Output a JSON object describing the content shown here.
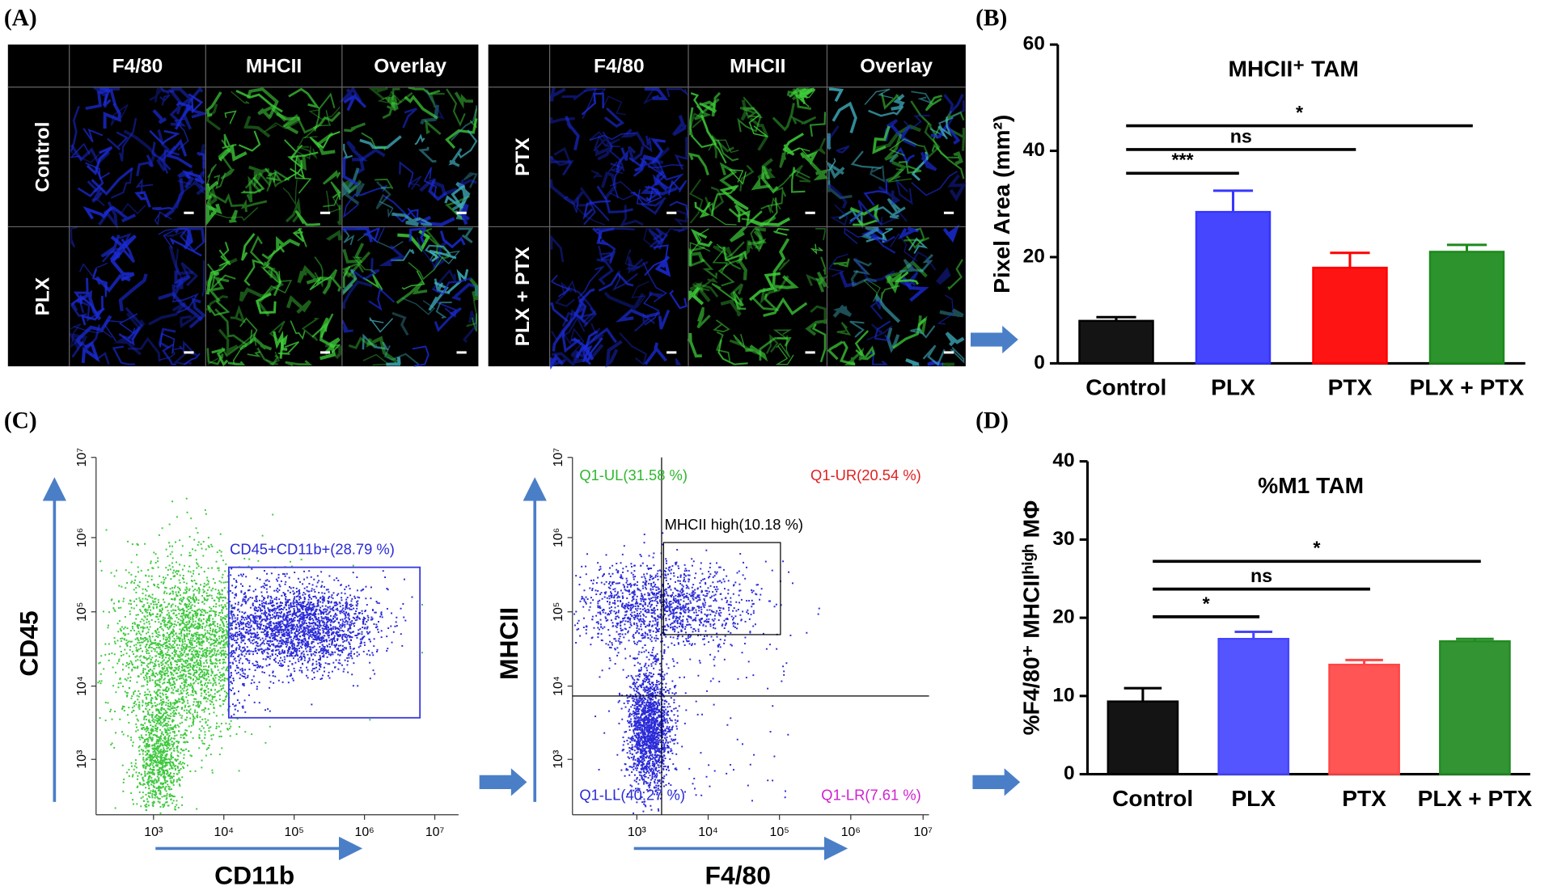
{
  "panel_labels": [
    "(A)",
    "(B)",
    "(C)",
    "(D)"
  ],
  "panel_a": {
    "left": {
      "columns": [
        "F4/80",
        "MHCII",
        "Overlay"
      ],
      "rows": [
        "Control",
        "PLX"
      ]
    },
    "right": {
      "columns": [
        "F4/80",
        "MHCII",
        "Overlay"
      ],
      "rows": [
        "PTX",
        "PLX + PTX"
      ]
    }
  },
  "chart_data": [
    {
      "type": "bar",
      "title": "MHCII⁺ TAM",
      "y_label": "Pixel Area (mm²)",
      "categories": [
        "Control",
        "PLX",
        "PTX",
        "PLX + PTX"
      ],
      "values": [
        8,
        28.5,
        18,
        21
      ],
      "errors": [
        0.7,
        4,
        2.8,
        1.3
      ],
      "colors": [
        "#000000",
        "#3636ff",
        "#ff0000",
        "#1b8a1b"
      ],
      "ylim": [
        0,
        60
      ],
      "yticks": [
        0,
        20,
        40,
        60
      ],
      "annotations": [
        {
          "text": "***",
          "from": "Control",
          "to": "PLX"
        },
        {
          "text": "ns",
          "from": "Control",
          "to": "PTX"
        },
        {
          "text": "*",
          "from": "Control",
          "to": "PLX + PTX"
        }
      ]
    },
    {
      "type": "bar",
      "title": "%M1 TAM",
      "y_label": "%F4/80⁺ MHCIIʰⁱᵍʰ MΦ",
      "categories": [
        "Control",
        "PLX",
        "PTX",
        "PLX + PTX"
      ],
      "values": [
        9.3,
        17.3,
        14,
        17
      ],
      "errors": [
        1.7,
        0.9,
        0.6,
        0.3
      ],
      "colors": [
        "#000000",
        "#4646ff",
        "#ff4646",
        "#228b22"
      ],
      "ylim": [
        0,
        40
      ],
      "yticks": [
        0,
        10,
        20,
        30,
        40
      ],
      "annotations": [
        {
          "text": "*",
          "from": "Control",
          "to": "PLX"
        },
        {
          "text": "ns",
          "from": "Control",
          "to": "PTX"
        },
        {
          "text": "*",
          "from": "Control",
          "to": "PLX + PTX"
        }
      ]
    }
  ],
  "panel_c": {
    "left": {
      "y_label": "CD45",
      "x_label": "CD11b",
      "ticks": [
        "10³",
        "10⁴",
        "10⁵",
        "10⁶",
        "10⁷"
      ],
      "gate": "CD45+CD11b+(28.79 %)"
    },
    "right": {
      "y_label": "MHCII",
      "x_label": "F4/80",
      "ticks": [
        "10³",
        "10⁴",
        "10⁵",
        "10⁶",
        "10⁷"
      ],
      "quadrants": [
        "Q1-UL(31.58 %)",
        "Q1-UR(20.54 %)",
        "Q1-LL(40.27 %)",
        "Q1-LR(7.61 %)"
      ],
      "gate": "MHCII high(10.18 %)"
    }
  }
}
